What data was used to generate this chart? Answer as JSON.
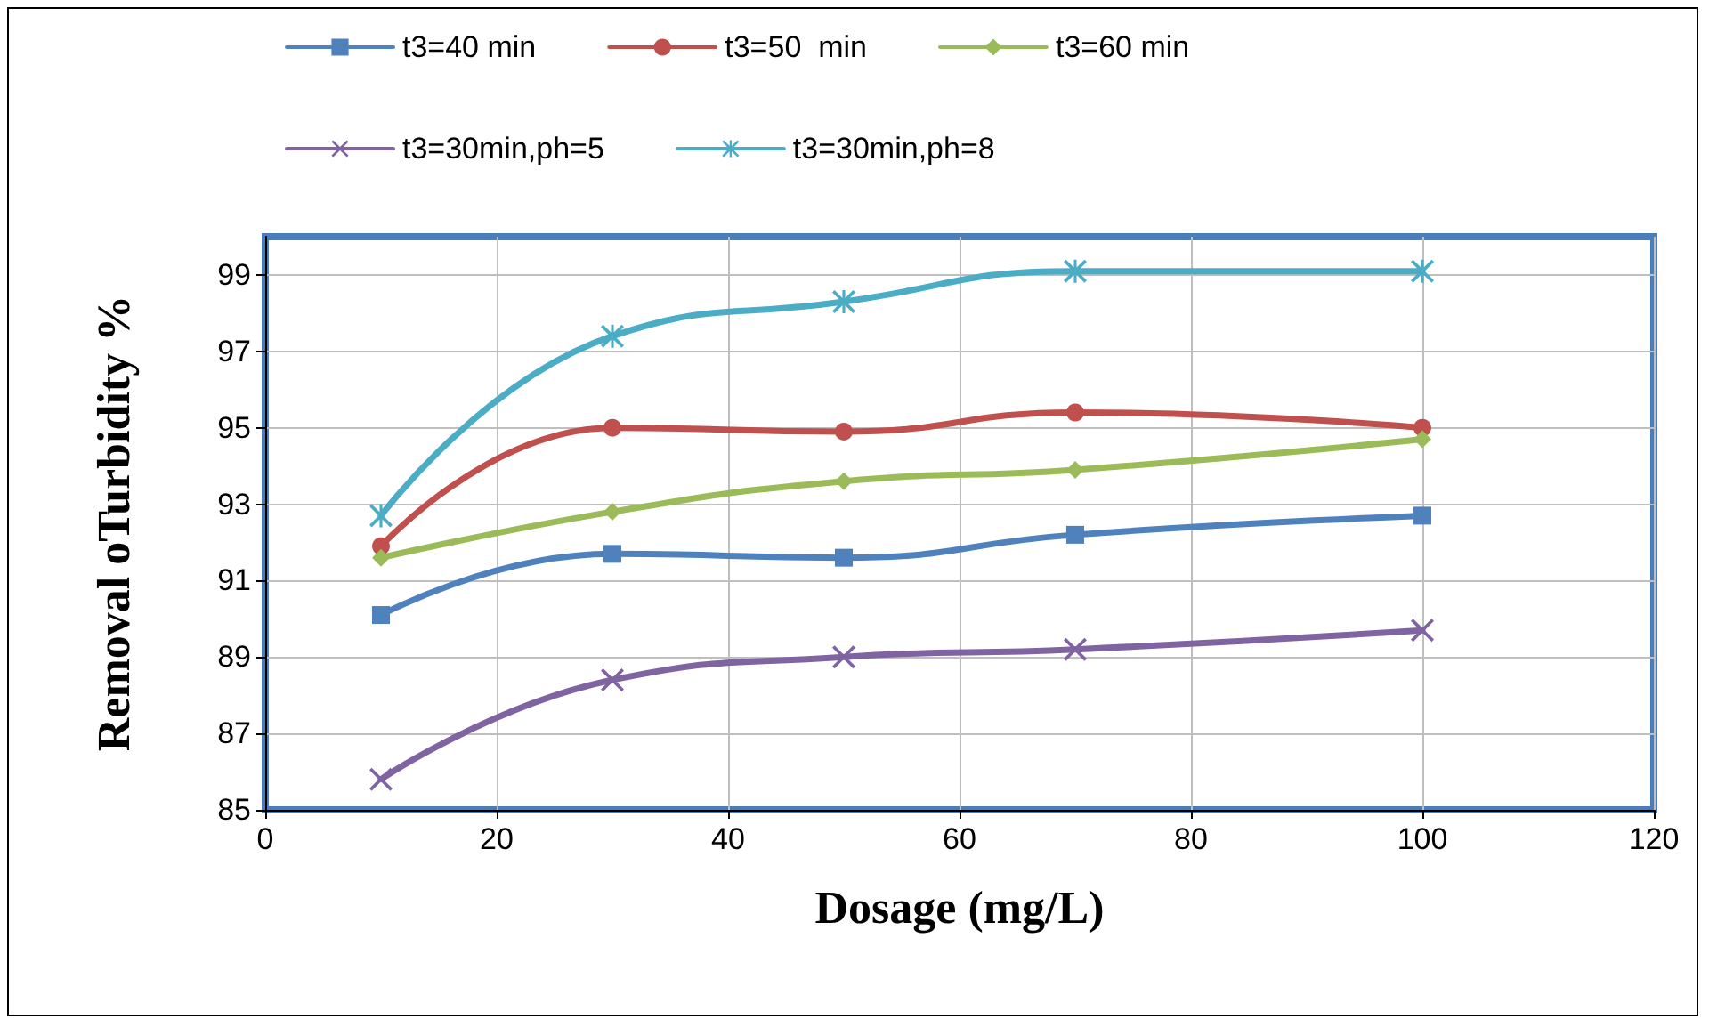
{
  "chart_data": {
    "type": "line",
    "xlabel": "Dosage (mg/L)",
    "ylabel": "Removal oTurbidity %",
    "x": [
      10,
      30,
      50,
      70,
      100
    ],
    "series": [
      {
        "name": "t3=40 min",
        "color": "#4f81bd",
        "marker": "square",
        "values": [
          90.1,
          91.7,
          91.6,
          92.2,
          92.7
        ]
      },
      {
        "name": "t3=50  min",
        "color": "#c0504d",
        "marker": "circle",
        "values": [
          91.9,
          95.0,
          94.9,
          95.4,
          95.0
        ]
      },
      {
        "name": "t3=60 min",
        "color": "#9bbb59",
        "marker": "diamond",
        "values": [
          91.6,
          92.8,
          93.6,
          93.9,
          94.7
        ]
      },
      {
        "name": "t3=30min,ph=5",
        "color": "#8064a2",
        "marker": "cross",
        "values": [
          85.8,
          88.4,
          89.0,
          89.2,
          89.7
        ]
      },
      {
        "name": "t3=30min,ph=8",
        "color": "#4bacc6",
        "marker": "star",
        "values": [
          92.7,
          97.4,
          98.3,
          99.1,
          99.1
        ]
      }
    ],
    "xlim": [
      0,
      120
    ],
    "xticks": [
      0,
      20,
      40,
      60,
      80,
      100,
      120
    ],
    "ylim": [
      85,
      100
    ],
    "yticks": [
      85,
      87,
      89,
      91,
      93,
      95,
      97,
      99
    ],
    "grid": true,
    "legend": "top",
    "line_style": "solid"
  }
}
